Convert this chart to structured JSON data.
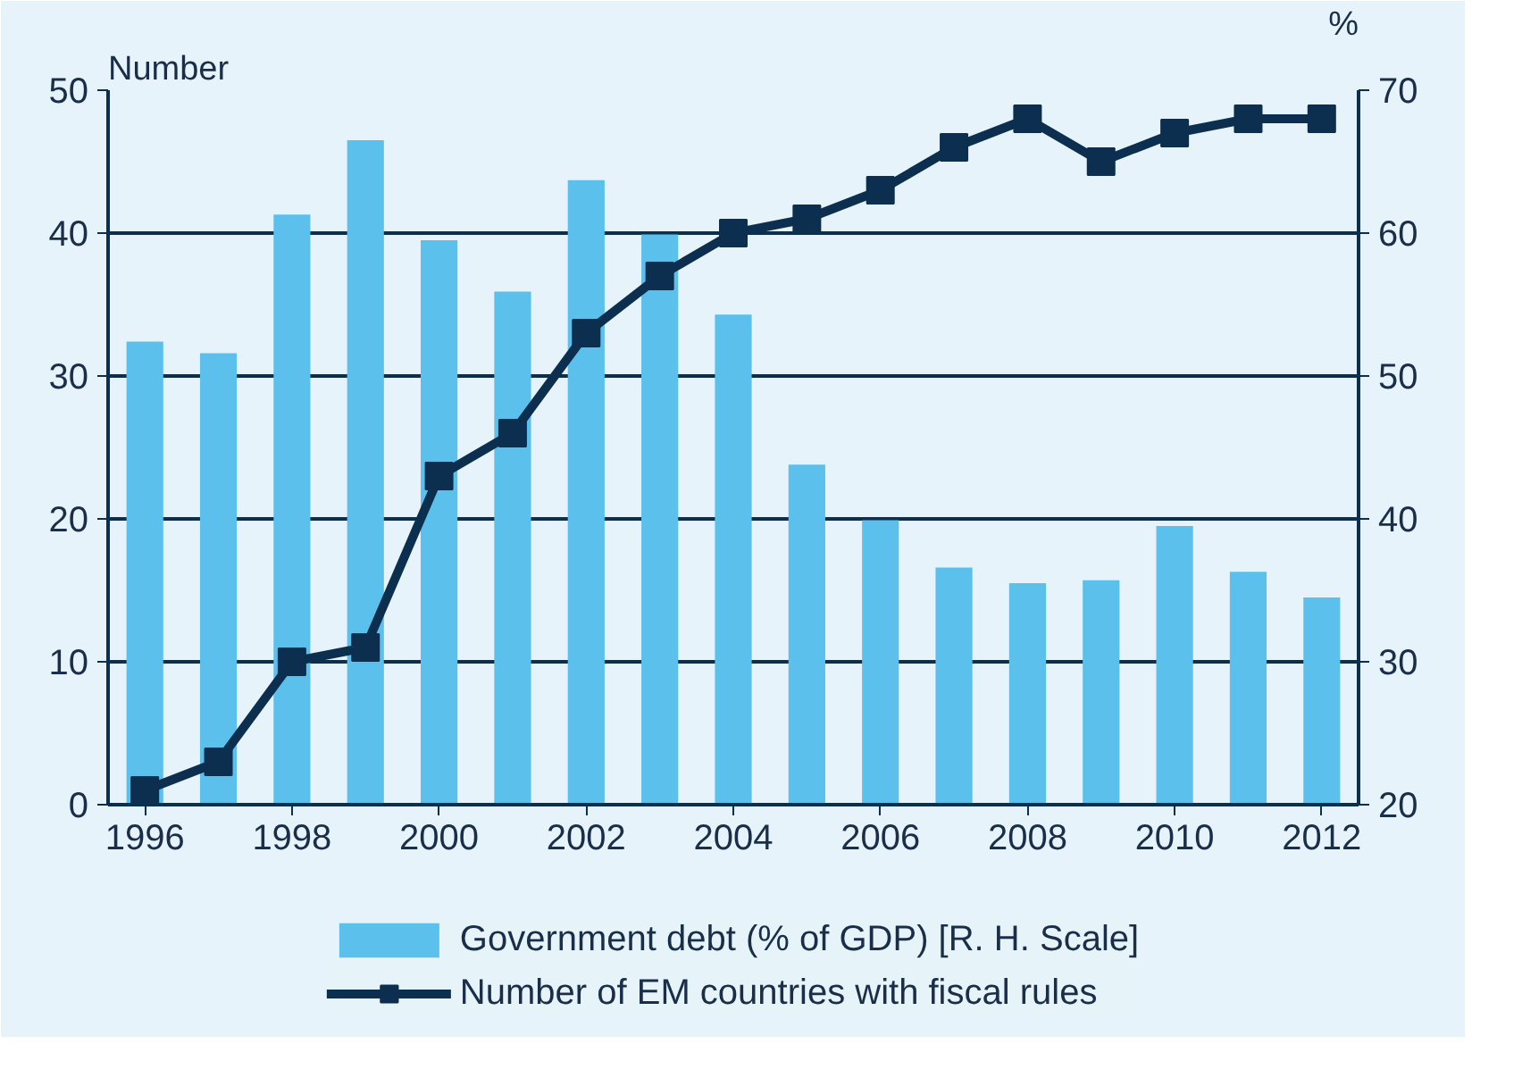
{
  "chart_data": {
    "type": "bar",
    "ylabel": "Number",
    "y2label": "%",
    "x": [
      1996,
      1997,
      1998,
      1999,
      2000,
      2001,
      2002,
      2003,
      2004,
      2005,
      2006,
      2007,
      2008,
      2009,
      2010,
      2011,
      2012
    ],
    "series": [
      {
        "name": "Government debt (% of GDP) [R. H. Scale]",
        "axis": "y2",
        "color": "#5bc0eb",
        "values": [
          52.4,
          51.6,
          61.3,
          66.5,
          59.5,
          55.9,
          63.7,
          59.9,
          54.3,
          43.8,
          39.9,
          36.6,
          35.5,
          35.7,
          39.5,
          36.3,
          34.5
        ]
      },
      {
        "name": "Number of EM countries with fiscal rules",
        "type": "line",
        "color": "#0d2f4f",
        "marker": "square",
        "values": [
          1,
          3,
          10,
          11,
          23,
          26,
          33,
          37,
          40,
          41,
          43,
          46,
          48,
          45,
          47,
          48,
          48
        ]
      }
    ],
    "xlim": [
      1995.5,
      2012.5
    ],
    "xticks": [
      1996,
      1998,
      2000,
      2002,
      2004,
      2006,
      2008,
      2010,
      2012
    ],
    "ylim": [
      0,
      50
    ],
    "yticks": [
      0,
      10,
      20,
      30,
      40,
      50
    ],
    "y2lim": [
      20,
      70
    ],
    "y2ticks": [
      20,
      30,
      40,
      50,
      60,
      70
    ],
    "grid": "y",
    "legend": "bottom"
  }
}
